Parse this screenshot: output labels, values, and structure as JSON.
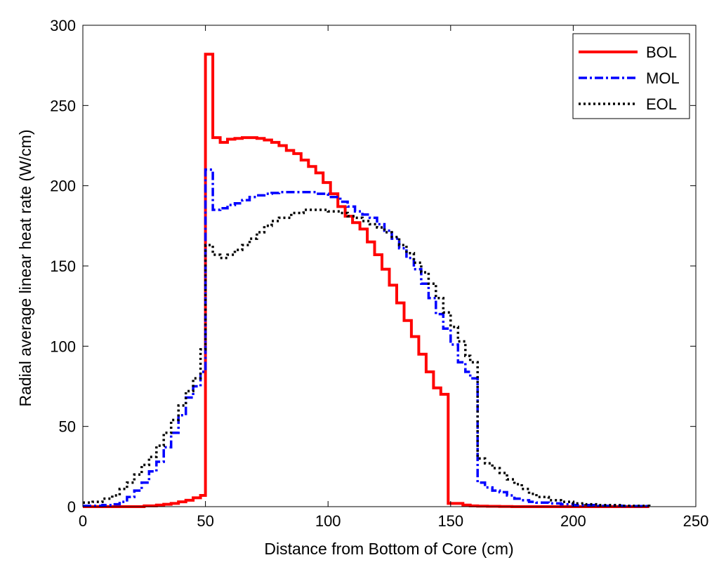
{
  "chart_data": {
    "type": "line",
    "title": "",
    "xlabel": "Distance from Bottom of Core (cm)",
    "ylabel": "Radial average linear heat rate (W/cm)",
    "xlim": [
      0,
      250
    ],
    "ylim": [
      0,
      300
    ],
    "xticks": [
      0,
      50,
      100,
      150,
      200,
      250
    ],
    "yticks": [
      0,
      50,
      100,
      150,
      200,
      250,
      300
    ],
    "grid": false,
    "legend_position": "top-right",
    "series": [
      {
        "name": "BOL",
        "color": "#ff0000",
        "style": "solid",
        "x": [
          0,
          5,
          10,
          15,
          20,
          25,
          30,
          33,
          36,
          39,
          42,
          45,
          48,
          50,
          53,
          56,
          59,
          62,
          65,
          68,
          71,
          74,
          77,
          80,
          83,
          86,
          89,
          92,
          95,
          98,
          101,
          104,
          107,
          110,
          113,
          116,
          119,
          122,
          125,
          128,
          131,
          134,
          137,
          140,
          143,
          146,
          149,
          152,
          155,
          158,
          161,
          165,
          170,
          175,
          180,
          190,
          200,
          210,
          220,
          231
        ],
        "y": [
          0,
          0,
          0,
          0,
          0,
          0.5,
          1,
          1.5,
          2,
          3,
          4,
          5.5,
          7,
          282,
          230,
          227,
          229,
          229.5,
          230,
          230,
          229.5,
          228.5,
          227,
          225,
          222,
          220,
          216,
          212,
          208,
          202,
          195,
          187,
          181,
          177,
          173,
          165,
          157,
          148,
          138,
          127,
          116,
          106,
          95,
          84,
          74,
          70,
          2,
          2,
          1,
          0.5,
          0.3,
          0.2,
          0.1,
          0,
          0,
          0,
          0,
          0,
          0,
          0
        ]
      },
      {
        "name": "MOL",
        "color": "#0000ff",
        "style": "dashdot",
        "x": [
          0,
          4,
          8,
          12,
          15,
          18,
          21,
          24,
          27,
          30,
          33,
          36,
          39,
          42,
          45,
          48,
          50,
          53,
          56,
          59,
          62,
          65,
          68,
          71,
          74,
          77,
          80,
          85,
          90,
          95,
          100,
          105,
          108,
          111,
          114,
          117,
          120,
          123,
          126,
          129,
          132,
          135,
          138,
          141,
          144,
          147,
          150,
          153,
          156,
          158,
          161,
          164,
          167,
          170,
          173,
          176,
          179,
          182,
          185,
          190,
          195,
          200,
          210,
          220,
          231
        ],
        "y": [
          0.5,
          0.5,
          1,
          1.5,
          3,
          6,
          10,
          15,
          22,
          28,
          37,
          46,
          57,
          68,
          75,
          84,
          210,
          185,
          186,
          188,
          189,
          191,
          193,
          194,
          195,
          195.5,
          196,
          196,
          196,
          195,
          193,
          190,
          187,
          184,
          182,
          180,
          176,
          172,
          167,
          161,
          155,
          148,
          139,
          130,
          120,
          111,
          101,
          90,
          84,
          80,
          15,
          12,
          10,
          9,
          7,
          5,
          4,
          3,
          2.5,
          2,
          1.5,
          1,
          0.5,
          0.3,
          0.2
        ]
      },
      {
        "name": "EOL",
        "color": "#000000",
        "style": "dotted",
        "x": [
          0,
          4,
          8,
          12,
          15,
          18,
          21,
          24,
          27,
          30,
          33,
          36,
          39,
          42,
          45,
          48,
          50,
          53,
          56,
          59,
          62,
          65,
          68,
          71,
          74,
          77,
          80,
          85,
          90,
          95,
          100,
          105,
          108,
          111,
          114,
          117,
          120,
          123,
          126,
          129,
          132,
          135,
          138,
          141,
          144,
          147,
          150,
          153,
          156,
          158,
          161,
          164,
          167,
          170,
          173,
          176,
          179,
          182,
          185,
          190,
          195,
          200,
          205,
          210,
          220,
          231
        ],
        "y": [
          2.5,
          3,
          5,
          7,
          11,
          15,
          20,
          26,
          31,
          38,
          46,
          54,
          63,
          72,
          80,
          98,
          163,
          157,
          155,
          157,
          160,
          163,
          167,
          171,
          175,
          178,
          180,
          183,
          185,
          185,
          184,
          183,
          181,
          180,
          178,
          176,
          174,
          171,
          168,
          163,
          158,
          152,
          146,
          139,
          130,
          121,
          112,
          103,
          94,
          90,
          30,
          27,
          24,
          21,
          17,
          14,
          11,
          8,
          6,
          4,
          3,
          2,
          1.5,
          1,
          0.5,
          0.3
        ]
      }
    ]
  }
}
